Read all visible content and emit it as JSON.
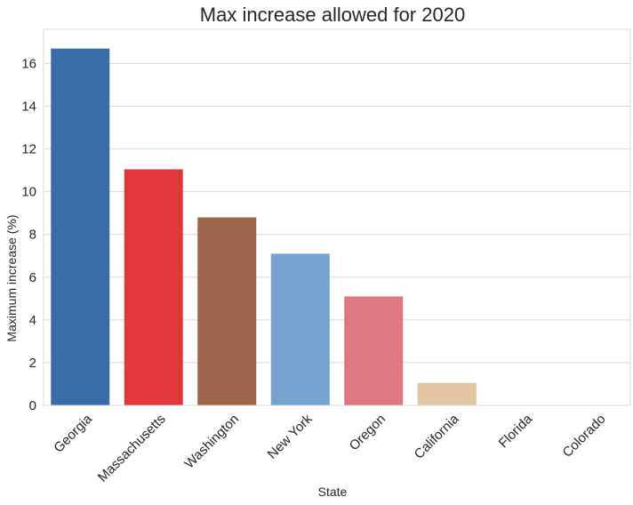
{
  "chart_data": {
    "type": "bar",
    "title": "Max increase allowed for 2020",
    "xlabel": "State",
    "ylabel": "Maximum increase (%)",
    "categories": [
      "Georgia",
      "Massachusetts",
      "Washington",
      "New York",
      "Oregon",
      "California",
      "Florida",
      "Colorado"
    ],
    "values": [
      16.7,
      11.05,
      8.8,
      7.1,
      5.1,
      1.05,
      0,
      0
    ],
    "colors": [
      "#3a6ba6",
      "#e0383a",
      "#9c6448",
      "#75a3cd",
      "#dd7880",
      "#e2c5a3",
      "#cccccc",
      "#cccccc"
    ],
    "ylim": [
      0,
      17.6
    ],
    "yticks": [
      0,
      2,
      4,
      6,
      8,
      10,
      12,
      14,
      16
    ],
    "grid": "horizontal"
  }
}
